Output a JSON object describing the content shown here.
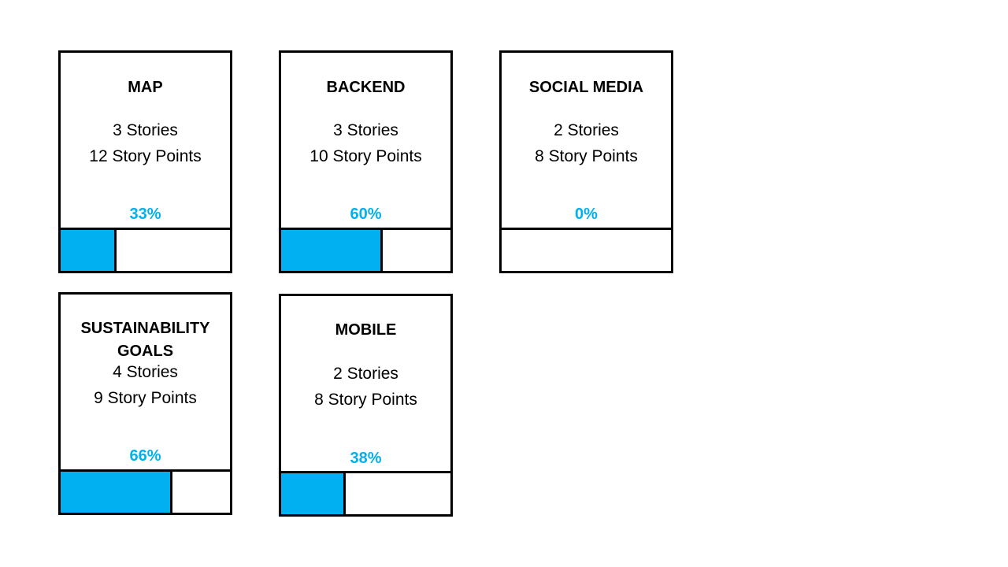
{
  "accent_color": "#00B0F0",
  "cards": [
    {
      "title_lines": [
        "MAP"
      ],
      "stories": "3 Stories",
      "points": "12 Story Points",
      "percent_label": "33%",
      "progress": 0.33
    },
    {
      "title_lines": [
        "BACKEND"
      ],
      "stories": "3 Stories",
      "points": "10 Story Points",
      "percent_label": "60%",
      "progress": 0.6
    },
    {
      "title_lines": [
        "SOCIAL MEDIA"
      ],
      "stories": "2 Stories",
      "points": "8 Story Points",
      "percent_label": "0%",
      "progress": 0.0
    },
    {
      "title_lines": [
        "SUSTAINABILITY",
        "GOALS"
      ],
      "stories": "4 Stories",
      "points": "9 Story Points",
      "percent_label": "66%",
      "progress": 0.66
    },
    {
      "title_lines": [
        "MOBILE"
      ],
      "stories": "2 Stories",
      "points": "8 Story Points",
      "percent_label": "38%",
      "progress": 0.38
    }
  ]
}
